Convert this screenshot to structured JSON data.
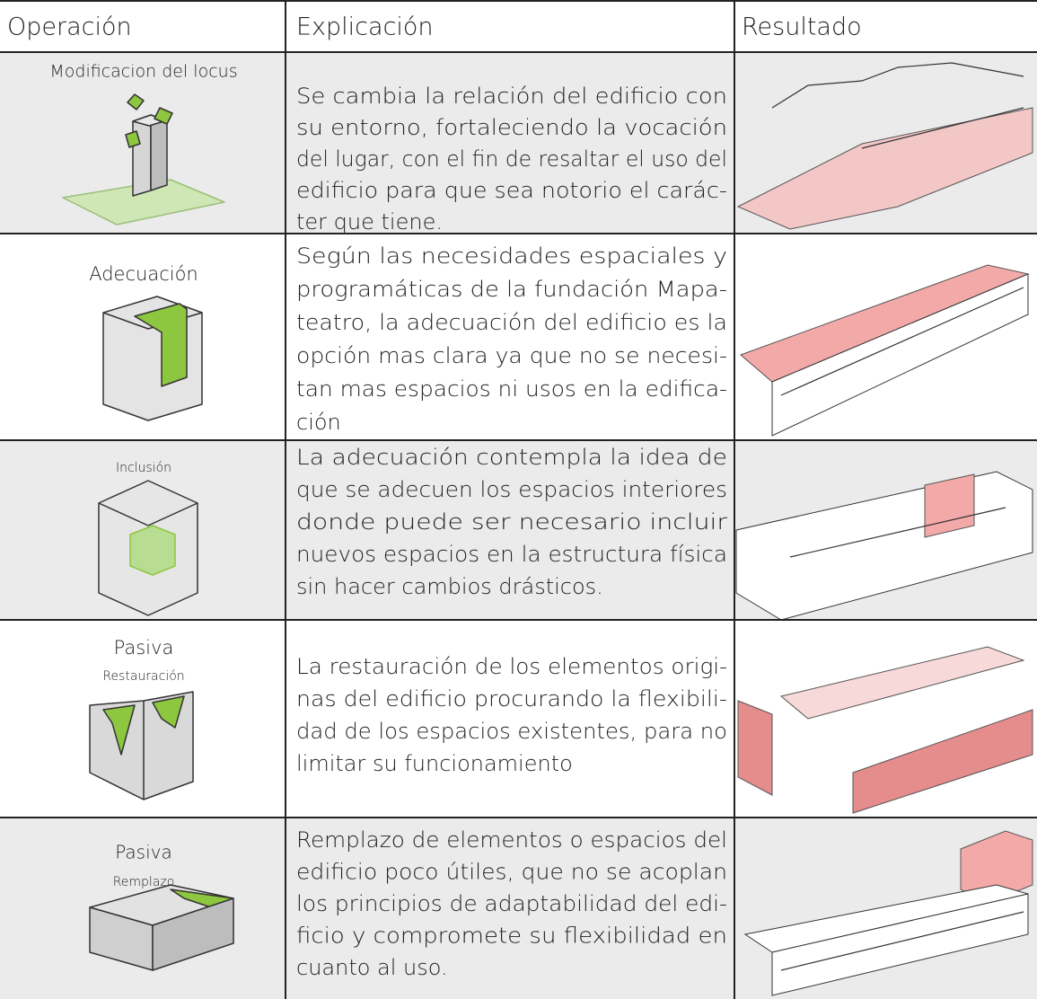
{
  "table": {
    "header": [
      "Operación",
      "Explicación",
      "Resultado"
    ],
    "rows": [
      {
        "operation": [
          "Modificacion del locus"
        ],
        "explanation": [
          "Se cambia la relación del edificio con",
          "su entorno, fortaleciendo la vocación",
          "del lugar, con el fin de resaltar el uso del",
          "edificio para que sea notorio el carác-",
          "ter que tiene."
        ]
      },
      {
        "operation": [
          "Adecuación"
        ],
        "explanation": [
          "Según las necesidades espaciales y",
          "programáticas de la fundación Mapa-",
          "teatro, la adecuación del edificio es la",
          "opción mas clara ya que no se necesi-",
          "tan mas espacios ni usos en la edifica-",
          "ción"
        ]
      },
      {
        "operation": [
          "Inclusión"
        ],
        "explanation": [
          "La adecuación contempla la idea de",
          "que se adecuen los espacios interiores",
          "donde puede ser necesario incluir",
          "nuevos espacios en la estructura física",
          "sin hacer cambios drásticos."
        ]
      },
      {
        "operation": [
          "Pasiva",
          "Restauración"
        ],
        "explanation": [
          "La restauración de los elementos origi-",
          "nas del edificio procurando la flexibili-",
          "dad de los espacios existentes, para no",
          "limitar su funcionamiento"
        ]
      },
      {
        "operation": [
          "Pasiva",
          "Remplazo"
        ],
        "explanation": [
          "Remplazo de elementos o espacios del",
          "edificio poco útiles, que no se acoplan",
          "los principios de adaptabilidad del edi-",
          "ficio y compromete su flexibilidad en",
          "cuanto al uso."
        ]
      }
    ]
  }
}
